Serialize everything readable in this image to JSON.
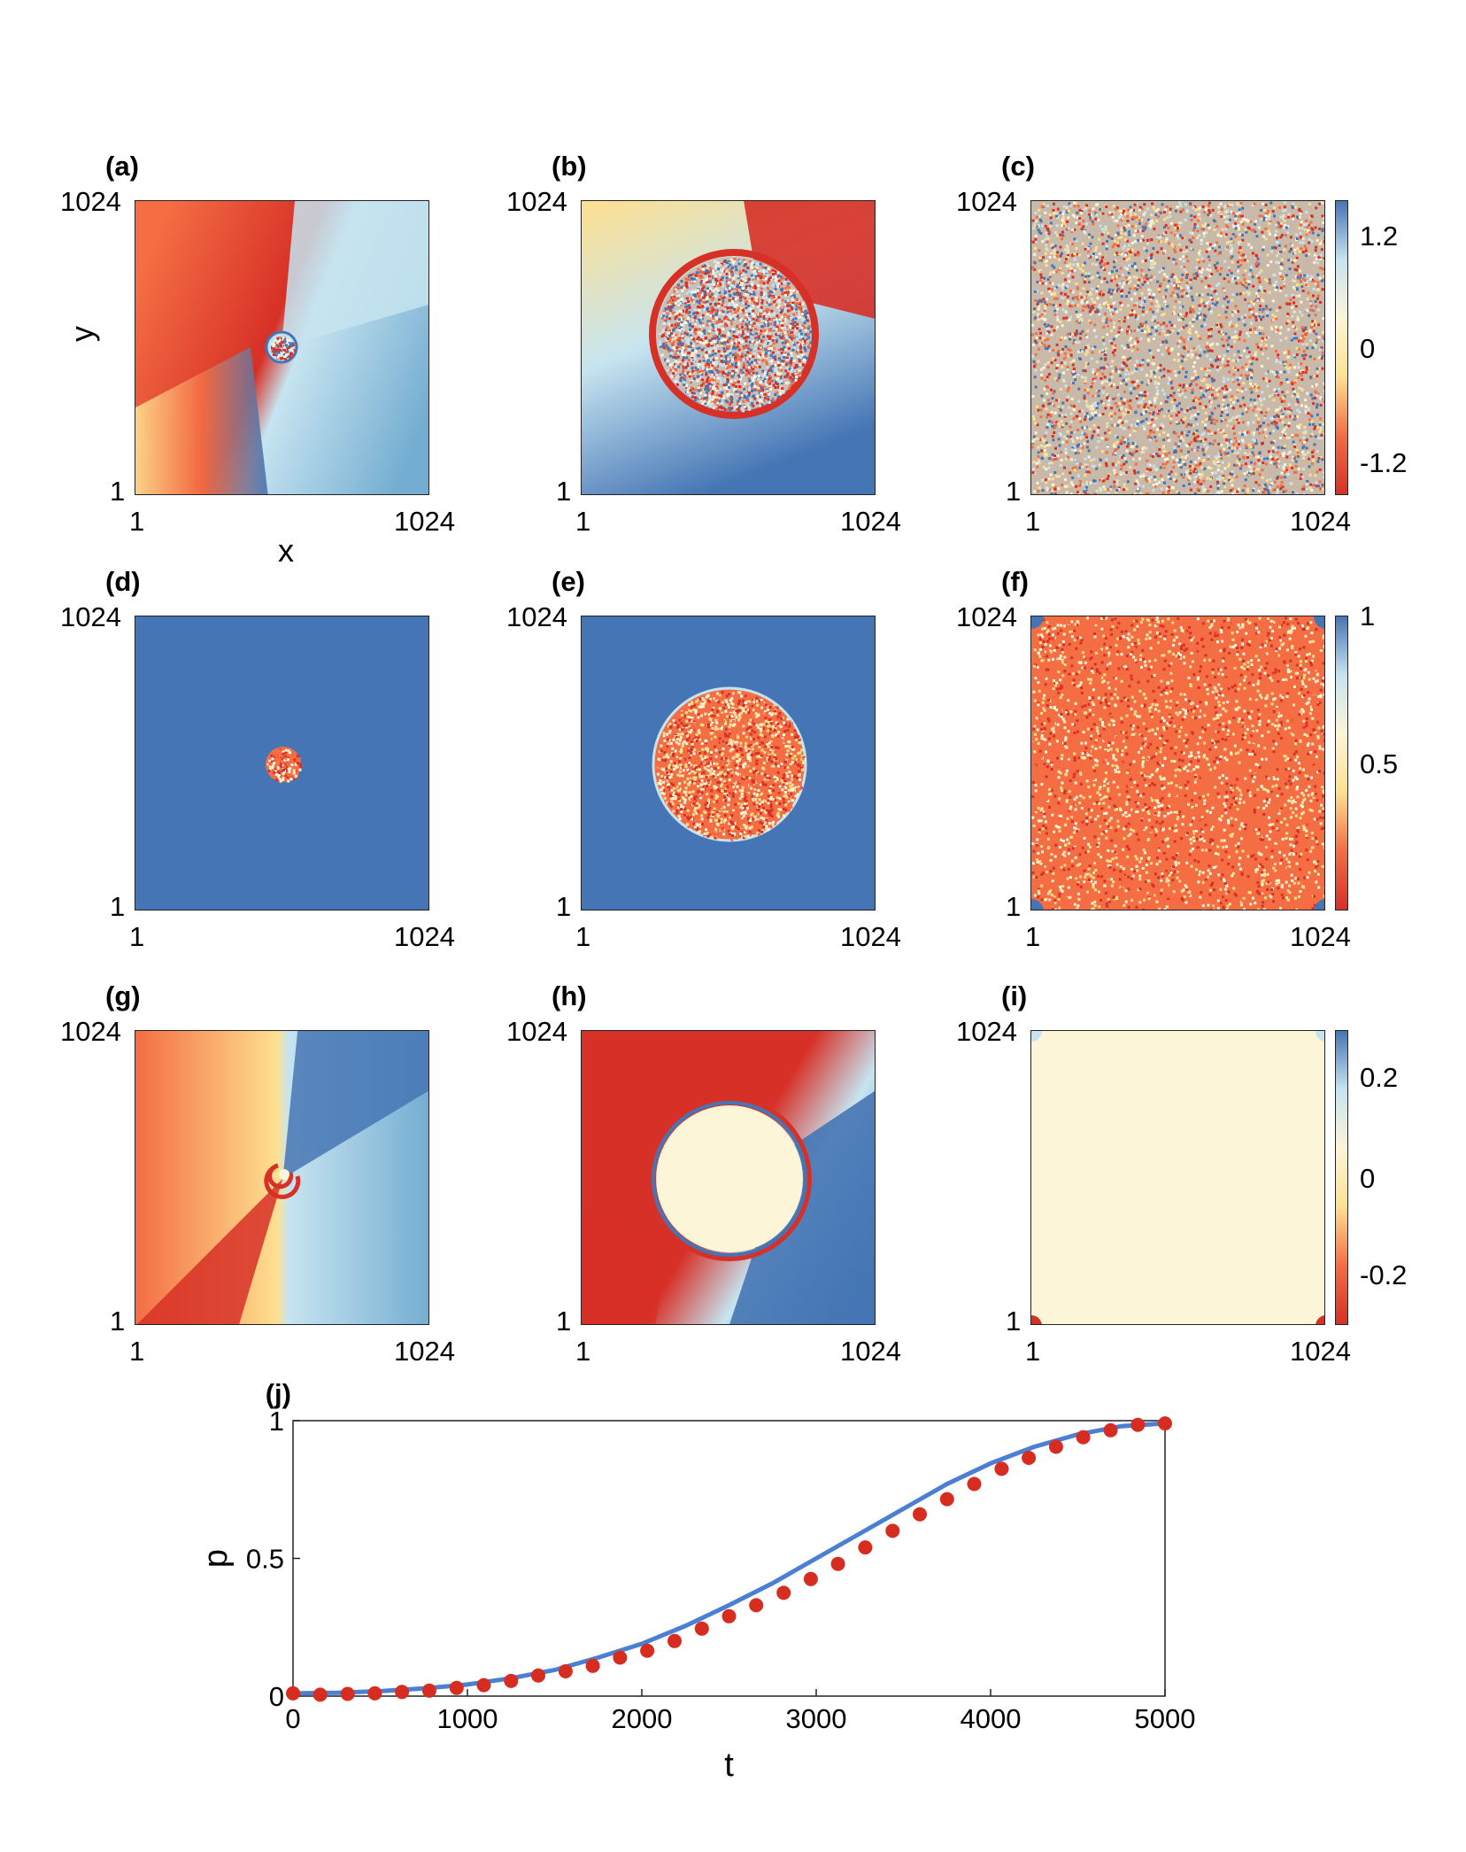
{
  "panels": [
    {
      "label": "(a)",
      "xmin": "1",
      "xmax": "1024",
      "ymin": "1",
      "ymax": "1024",
      "xlabel": "x",
      "ylabel": "y",
      "pattern": "spiral-small"
    },
    {
      "label": "(b)",
      "xmin": "1",
      "xmax": "1024",
      "ymin": "1",
      "ymax": "1024",
      "pattern": "circle-noise"
    },
    {
      "label": "(c)",
      "xmin": "1",
      "xmax": "1024",
      "ymin": "1",
      "ymax": "1024",
      "pattern": "full-noise"
    },
    {
      "label": "(d)",
      "xmin": "1",
      "xmax": "1024",
      "ymin": "1",
      "ymax": "1024",
      "pattern": "blue-small-dot"
    },
    {
      "label": "(e)",
      "xmin": "1",
      "xmax": "1024",
      "ymin": "1",
      "ymax": "1024",
      "pattern": "blue-circle"
    },
    {
      "label": "(f)",
      "xmin": "1",
      "xmax": "1024",
      "ymin": "1",
      "ymax": "1024",
      "pattern": "orange-full"
    },
    {
      "label": "(g)",
      "xmin": "1",
      "xmax": "1024",
      "ymin": "1",
      "ymax": "1024",
      "pattern": "spiral"
    },
    {
      "label": "(h)",
      "xmin": "1",
      "xmax": "1024",
      "ymin": "1",
      "ymax": "1024",
      "pattern": "circle-cream"
    },
    {
      "label": "(i)",
      "xmin": "1",
      "xmax": "1024",
      "ymin": "1",
      "ymax": "1024",
      "pattern": "cream-full"
    }
  ],
  "colorbars": [
    {
      "ticks": [
        "1.2",
        "0",
        "-1.2"
      ]
    },
    {
      "ticks": [
        "1",
        "0.5"
      ]
    },
    {
      "ticks": [
        "0.2",
        "0",
        "-0.2"
      ]
    }
  ],
  "colors": {
    "red": "#d73027",
    "orange": "#f46d43",
    "cream": "#fdf5d8",
    "yellow": "#fee090",
    "lightblue": "#c6e4f0",
    "blue": "#4575b4",
    "midblue": "#74add1",
    "line": "#4a7fd4",
    "marker": "#d62d20"
  },
  "chart_data": {
    "type": "line",
    "label": "(j)",
    "xlabel": "t",
    "ylabel": "p",
    "xlim": [
      0,
      5000
    ],
    "ylim": [
      0,
      1
    ],
    "xticks": [
      "0",
      "1000",
      "2000",
      "3000",
      "4000",
      "5000"
    ],
    "yticks": [
      "0",
      "0.5",
      "1"
    ],
    "series": [
      {
        "style": "line",
        "x": [
          0,
          250,
          500,
          750,
          1000,
          1250,
          1500,
          1750,
          2000,
          2250,
          2500,
          2750,
          3000,
          3250,
          3500,
          3750,
          4000,
          4250,
          4500,
          4750,
          5000
        ],
        "values": [
          0.01,
          0.012,
          0.018,
          0.028,
          0.042,
          0.065,
          0.095,
          0.14,
          0.19,
          0.255,
          0.33,
          0.41,
          0.5,
          0.59,
          0.68,
          0.77,
          0.845,
          0.905,
          0.95,
          0.98,
          0.99
        ]
      },
      {
        "style": "markers",
        "x": [
          0,
          156,
          313,
          469,
          625,
          781,
          938,
          1094,
          1250,
          1406,
          1563,
          1719,
          1875,
          2031,
          2188,
          2344,
          2500,
          2656,
          2813,
          2969,
          3125,
          3281,
          3438,
          3594,
          3750,
          3906,
          4063,
          4219,
          4375,
          4531,
          4688,
          4844,
          5000
        ],
        "values": [
          0.01,
          0.005,
          0.008,
          0.01,
          0.015,
          0.02,
          0.03,
          0.04,
          0.055,
          0.075,
          0.09,
          0.11,
          0.14,
          0.165,
          0.2,
          0.245,
          0.29,
          0.33,
          0.375,
          0.425,
          0.48,
          0.54,
          0.6,
          0.66,
          0.715,
          0.77,
          0.825,
          0.865,
          0.905,
          0.94,
          0.965,
          0.985,
          0.99
        ]
      }
    ]
  }
}
